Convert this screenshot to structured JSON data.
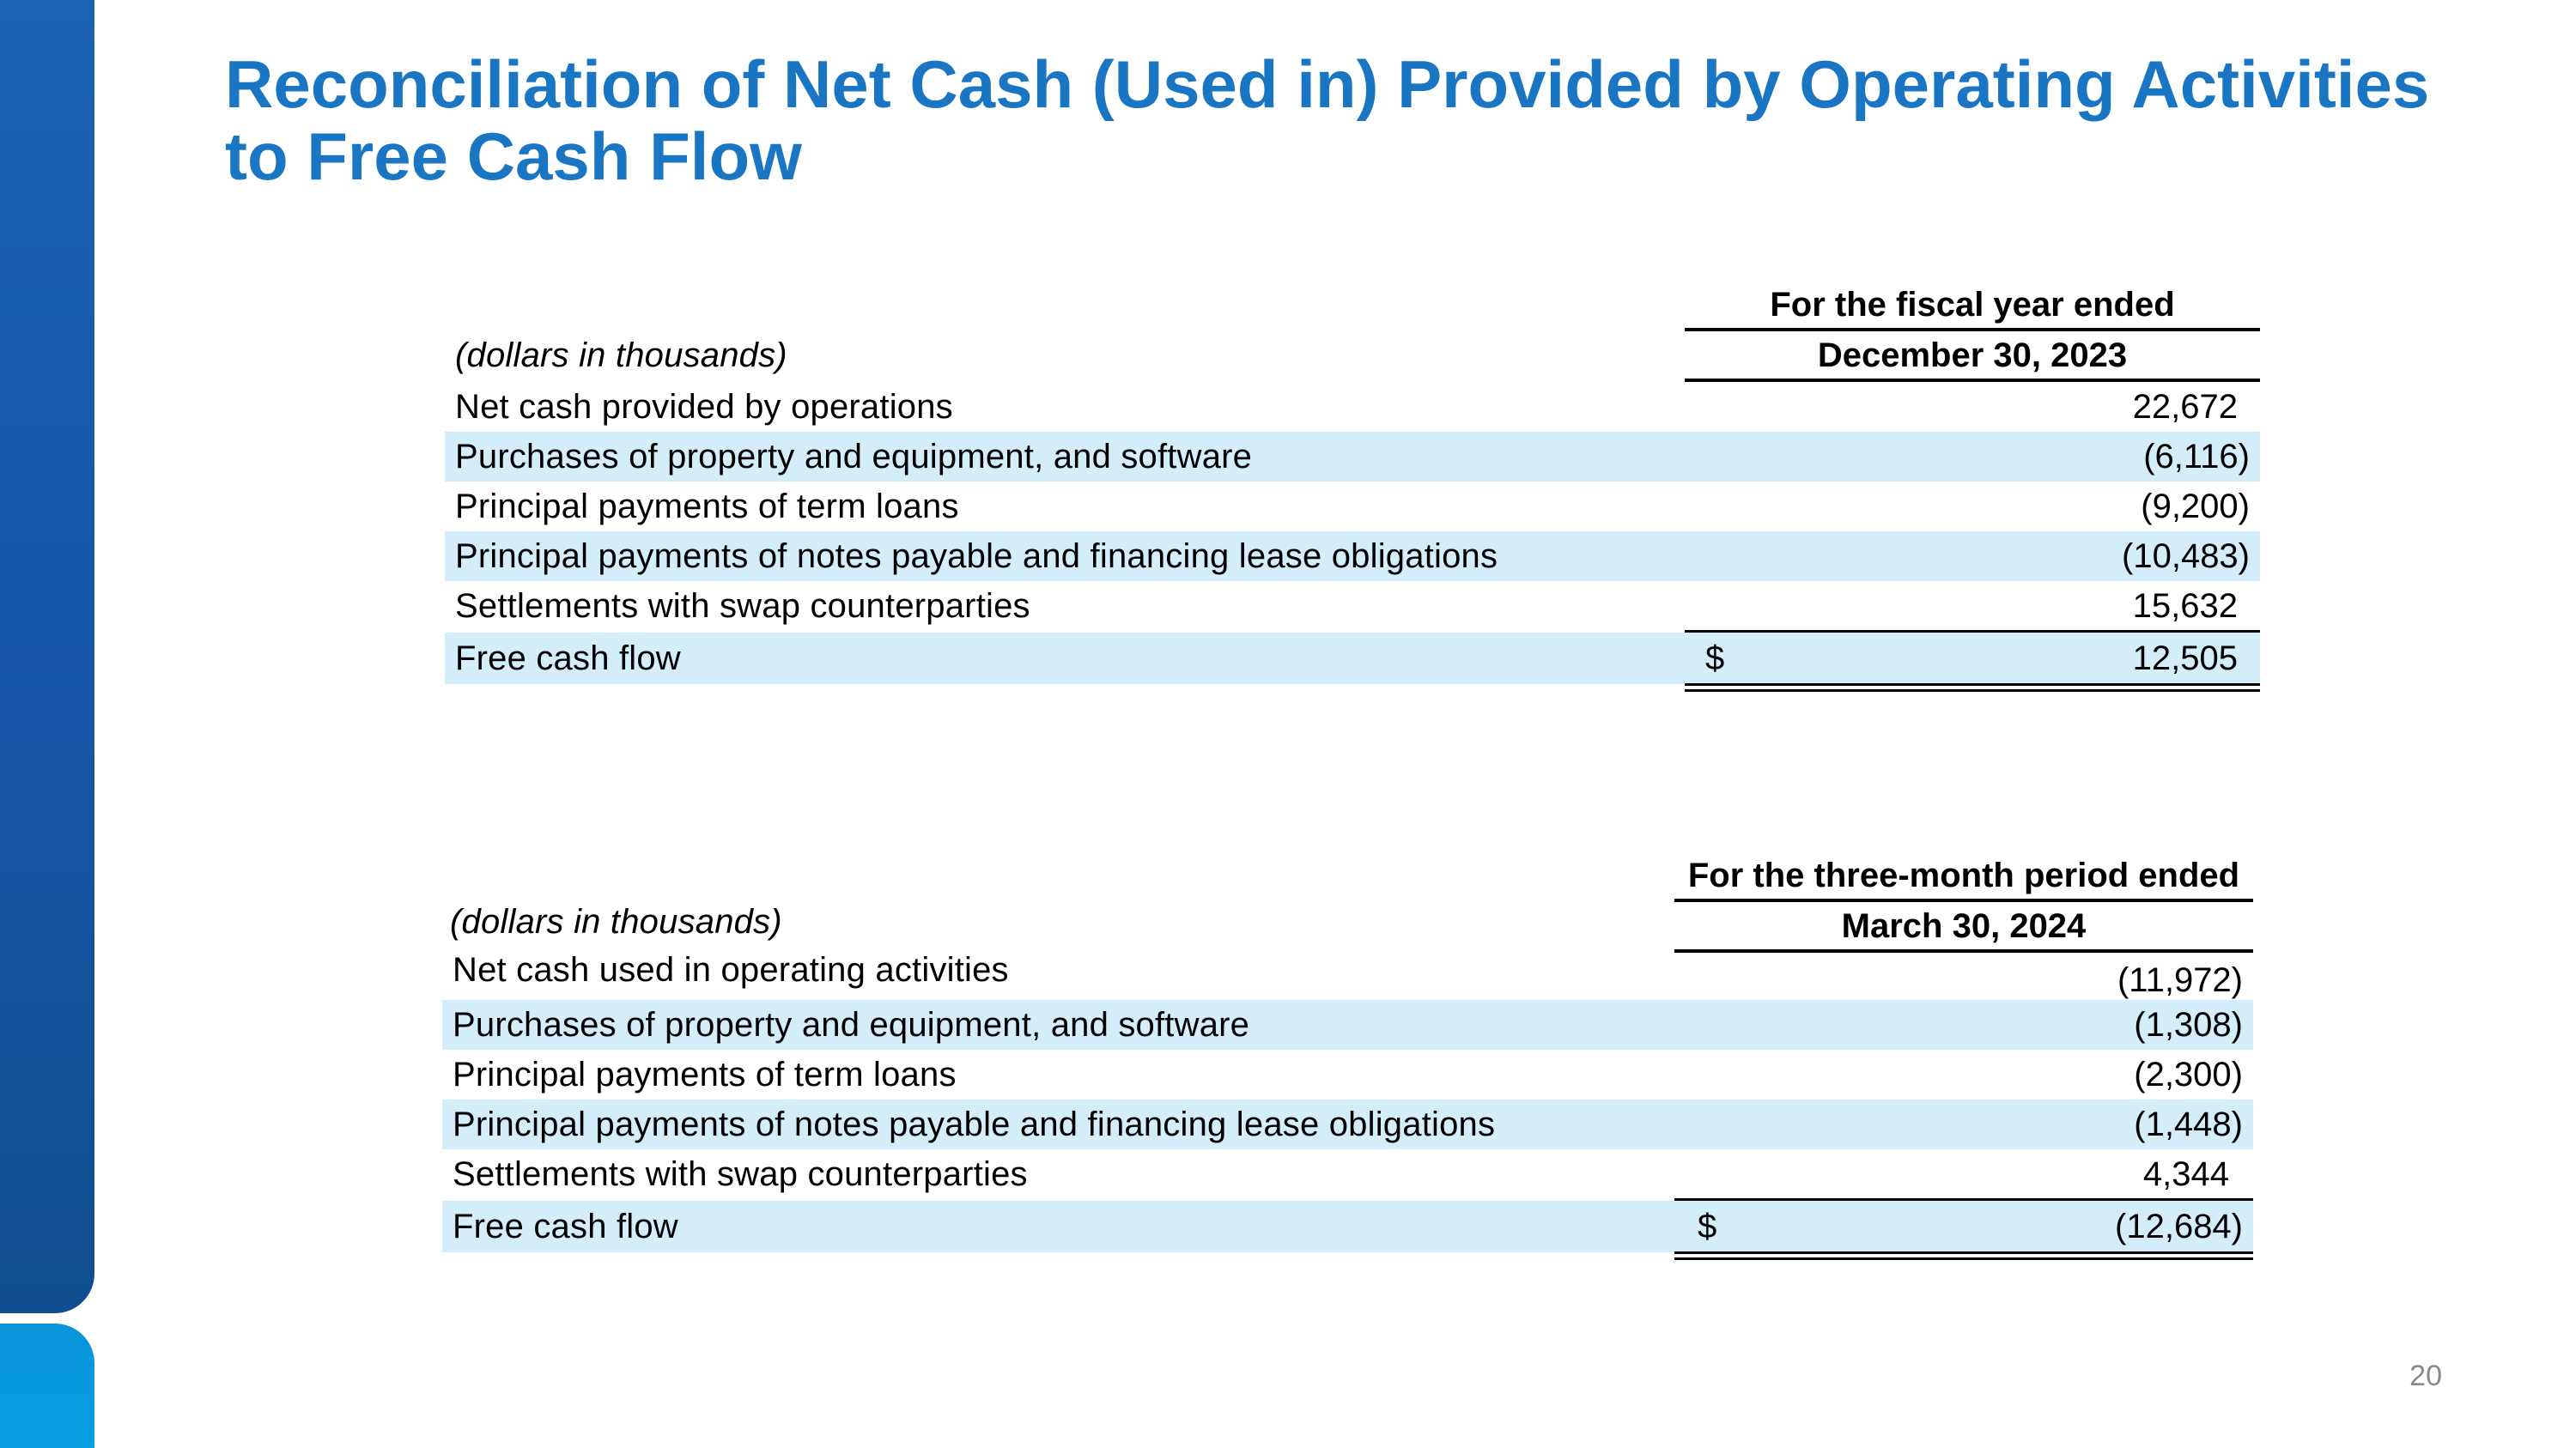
{
  "title": {
    "line1": "Reconciliation of Net Cash (Used in) Provided by Operating Activities",
    "line2": "to Free Cash Flow"
  },
  "table1": {
    "units_label": "(dollars in thousands)",
    "header_line1": "For the fiscal year ended",
    "header_line2": "December 30, 2023",
    "rows": [
      {
        "label": "Net cash provided by operations",
        "value": "22,672"
      },
      {
        "label": "Purchases of property and equipment, and software",
        "value": "(6,116)"
      },
      {
        "label": "Principal payments of term loans",
        "value": "(9,200)"
      },
      {
        "label": "Principal payments of notes payable and financing lease obligations",
        "value": "(10,483)"
      },
      {
        "label": "Settlements with swap counterparties",
        "value": "15,632"
      },
      {
        "label": "Free cash flow",
        "currency": "$",
        "value": "12,505"
      }
    ]
  },
  "table2": {
    "units_label": "(dollars in thousands)",
    "header_line1": "For the three-month period ended",
    "header_line2": "March 30, 2024",
    "rows": [
      {
        "label": "Net cash used in operating activities",
        "value": "(11,972)"
      },
      {
        "label": "Purchases of property and equipment, and software",
        "value": "(1,308)"
      },
      {
        "label": "Principal payments of term loans",
        "value": "(2,300)"
      },
      {
        "label": "Principal payments of notes payable and financing lease obligations",
        "value": "(1,448)"
      },
      {
        "label": "Settlements with swap counterparties",
        "value": "4,344"
      },
      {
        "label": "Free cash flow",
        "currency": "$",
        "value": "(12,684)"
      }
    ]
  },
  "page_number": "20",
  "colors": {
    "title": "#1a76c2",
    "sidebar_top": "#1556a6",
    "sidebar_bottom": "#08a0e3",
    "row_shade": "#d3eef9"
  }
}
